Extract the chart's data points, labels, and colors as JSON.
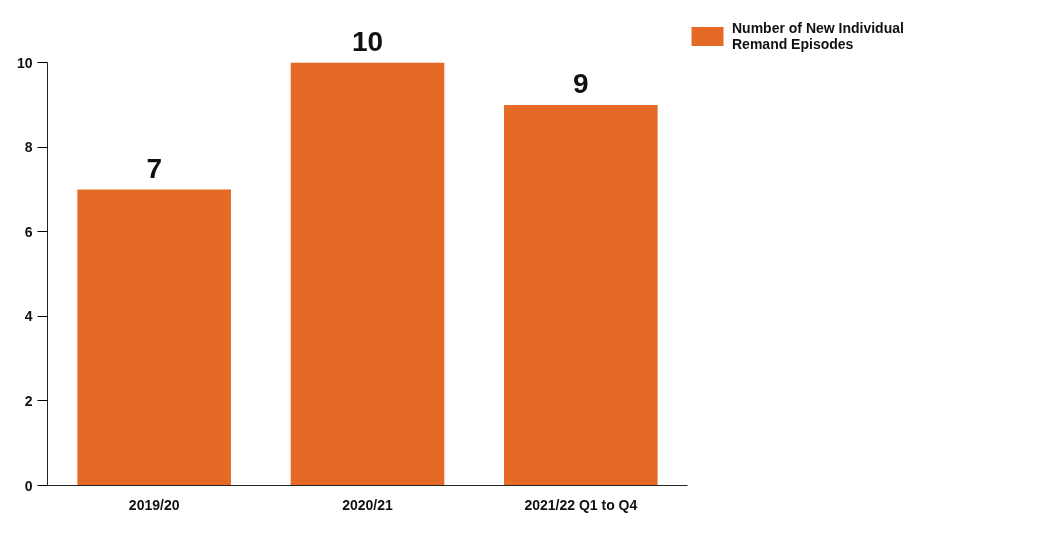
{
  "chart_data": {
    "type": "bar",
    "categories": [
      "2019/20",
      "2020/21",
      "2021/22 Q1 to Q4"
    ],
    "series": [
      {
        "name": "Number of New Individual Remand Episodes",
        "color": "#e56a25",
        "values": [
          7,
          10,
          9
        ]
      }
    ],
    "ylim": [
      0,
      10
    ],
    "yticks": [
      0,
      2,
      4,
      6,
      8,
      10
    ],
    "data_labels": true,
    "grid": false,
    "legend": "top right"
  }
}
